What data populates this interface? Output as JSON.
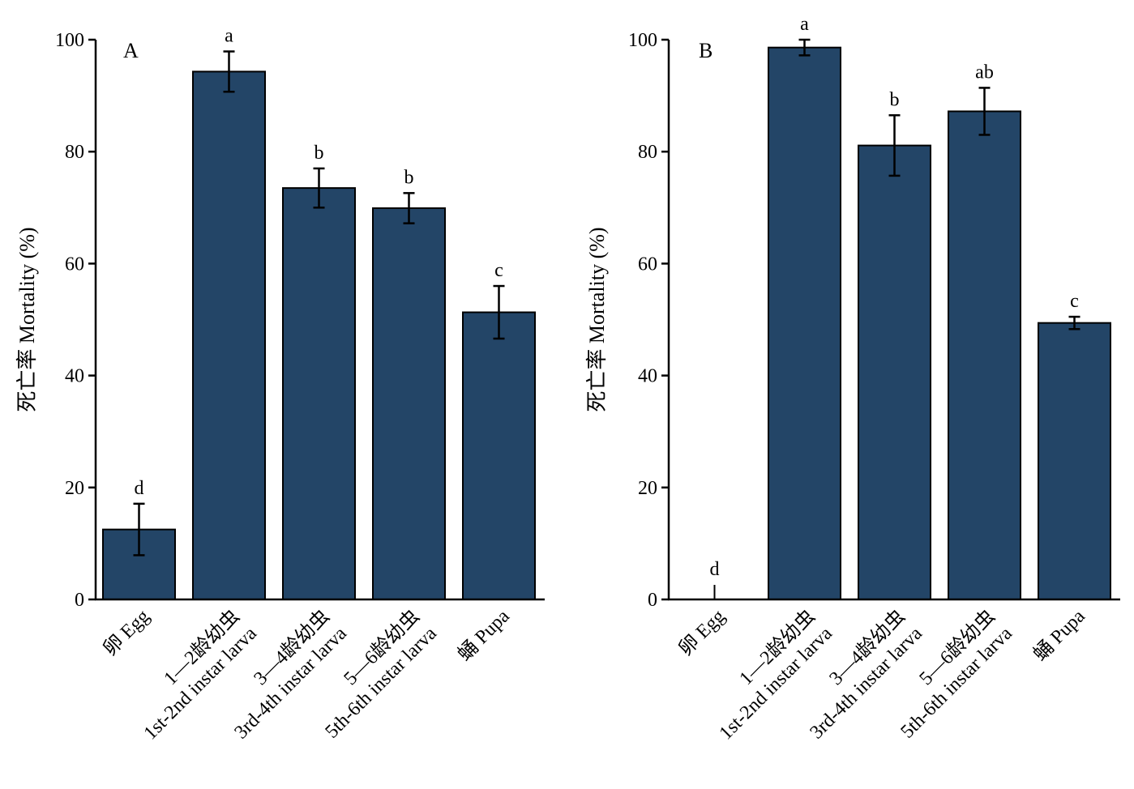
{
  "colors": {
    "bar": "#234567",
    "axis": "#000000",
    "errorbar": "#000000"
  },
  "chart_data": [
    {
      "type": "bar",
      "panel_label": "A",
      "categories": [
        {
          "zh": "卵 Egg",
          "en": ""
        },
        {
          "zh": "1—2龄幼虫",
          "en": "1st-2nd instar larva"
        },
        {
          "zh": "3—4龄幼虫",
          "en": "3rd-4th instar larva"
        },
        {
          "zh": "5—6龄幼虫",
          "en": "5th-6th instar larva"
        },
        {
          "zh": "蛹 Pupa",
          "en": ""
        }
      ],
      "values": [
        12.5,
        94.3,
        73.5,
        69.9,
        51.3
      ],
      "errors": [
        4.6,
        3.6,
        3.5,
        2.7,
        4.7
      ],
      "significance": [
        "d",
        "a",
        "b",
        "b",
        "c"
      ],
      "ylabel": "死亡率 Mortality (%)",
      "ylim": [
        0,
        100
      ],
      "yticks": [
        "0",
        "20",
        "40",
        "60",
        "80",
        "100"
      ],
      "grid": false
    },
    {
      "type": "bar",
      "panel_label": "B",
      "categories": [
        {
          "zh": "卵 Egg",
          "en": ""
        },
        {
          "zh": "1—2龄幼虫",
          "en": "1st-2nd instar larva"
        },
        {
          "zh": "3—4龄幼虫",
          "en": "3rd-4th instar larva"
        },
        {
          "zh": "5—6龄幼虫",
          "en": "5th-6th instar larva"
        },
        {
          "zh": "蛹 Pupa",
          "en": ""
        }
      ],
      "values": [
        0,
        98.6,
        81.1,
        87.2,
        49.4
      ],
      "errors": [
        0,
        1.4,
        5.4,
        4.2,
        1.1
      ],
      "significance": [
        "d",
        "a",
        "b",
        "ab",
        "c"
      ],
      "ylabel": "死亡率 Mortality (%)",
      "ylim": [
        0,
        100
      ],
      "yticks": [
        "0",
        "20",
        "40",
        "60",
        "80",
        "100"
      ],
      "grid": false
    }
  ]
}
